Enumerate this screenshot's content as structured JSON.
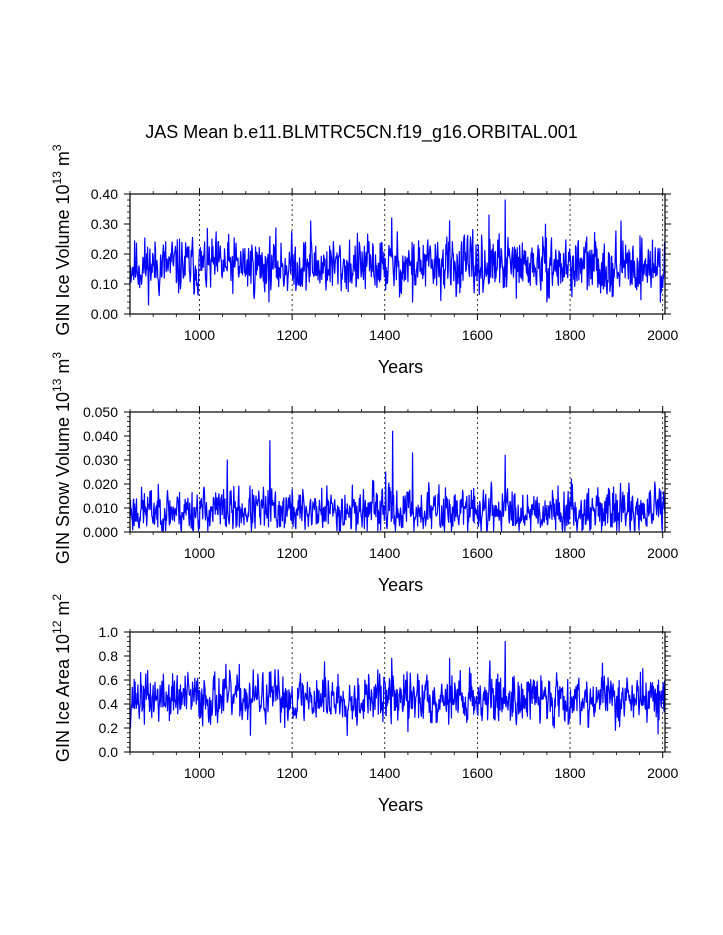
{
  "figure": {
    "title": "JAS Mean b.e11.BLMTRC5CN.f19_g16.ORBITAL.001"
  },
  "chart_data": [
    {
      "type": "line",
      "ylabel": "GIN Ice Volume 10",
      "ylabel_exp": "13",
      "ylabel_unit": " m",
      "ylabel_unit_exp": "3",
      "xlabel": "Years",
      "xlim": [
        850,
        2005
      ],
      "ylim": [
        0,
        0.4
      ],
      "xticks": [
        1000,
        1200,
        1400,
        1600,
        1800,
        2000
      ],
      "yticks": [
        0,
        0.1,
        0.2,
        0.3,
        0.4
      ],
      "ytick_labels": [
        "0.00",
        "0.10",
        "0.20",
        "0.30",
        "0.40"
      ],
      "grid_x": [
        1000,
        1200,
        1400,
        1600,
        1800,
        2000
      ],
      "color": "#0000ff",
      "series_params": {
        "mean": 0.16,
        "amp": 0.045,
        "seed": 11,
        "min": 0.03,
        "max": 0.38,
        "spikes": [
          [
            1660,
            0.38
          ],
          [
            1625,
            0.33
          ],
          [
            1415,
            0.32
          ],
          [
            1240,
            0.31
          ],
          [
            1540,
            0.31
          ],
          [
            1910,
            0.31
          ],
          [
            1460,
            0.04
          ],
          [
            1750,
            0.04
          ],
          [
            1995,
            0.04
          ]
        ]
      }
    },
    {
      "type": "line",
      "ylabel": "GIN Snow Volume 10",
      "ylabel_exp": "13",
      "ylabel_unit": " m",
      "ylabel_unit_exp": "3",
      "xlabel": "Years",
      "xlim": [
        850,
        2005
      ],
      "ylim": [
        0,
        0.05
      ],
      "xticks": [
        1000,
        1200,
        1400,
        1600,
        1800,
        2000
      ],
      "yticks": [
        0,
        0.01,
        0.02,
        0.03,
        0.04,
        0.05
      ],
      "ytick_labels": [
        "0.000",
        "0.010",
        "0.020",
        "0.030",
        "0.040",
        "0.050"
      ],
      "grid_x": [
        1000,
        1200,
        1400,
        1600,
        1800,
        2000
      ],
      "color": "#0000ff",
      "series_params": {
        "mean": 0.009,
        "amp": 0.0045,
        "seed": 23,
        "min": 0.0005,
        "max": 0.042,
        "spikes": [
          [
            1152,
            0.038
          ],
          [
            1417,
            0.042
          ],
          [
            1060,
            0.03
          ],
          [
            1460,
            0.033
          ],
          [
            1660,
            0.032
          ],
          [
            1402,
            0.025
          ]
        ]
      }
    },
    {
      "type": "line",
      "ylabel": "GIN Ice Area 10",
      "ylabel_exp": "12",
      "ylabel_unit": " m",
      "ylabel_unit_exp": "2",
      "xlabel": "Years",
      "xlim": [
        850,
        2005
      ],
      "ylim": [
        0,
        1.0
      ],
      "xticks": [
        1000,
        1200,
        1400,
        1600,
        1800,
        2000
      ],
      "yticks": [
        0,
        0.2,
        0.4,
        0.6,
        0.8,
        1.0
      ],
      "ytick_labels": [
        "0.0",
        "0.2",
        "0.4",
        "0.6",
        "0.8",
        "1.0"
      ],
      "grid_x": [
        1000,
        1200,
        1400,
        1600,
        1800,
        2000
      ],
      "color": "#0000ff",
      "series_params": {
        "mean": 0.45,
        "amp": 0.1,
        "seed": 37,
        "min": 0.12,
        "max": 0.92,
        "spikes": [
          [
            1660,
            0.92
          ],
          [
            1415,
            0.78
          ],
          [
            1540,
            0.78
          ],
          [
            1110,
            0.14
          ],
          [
            1990,
            0.15
          ],
          [
            1450,
            0.17
          ],
          [
            1870,
            0.74
          ],
          [
            1270,
            0.75
          ]
        ]
      }
    }
  ]
}
